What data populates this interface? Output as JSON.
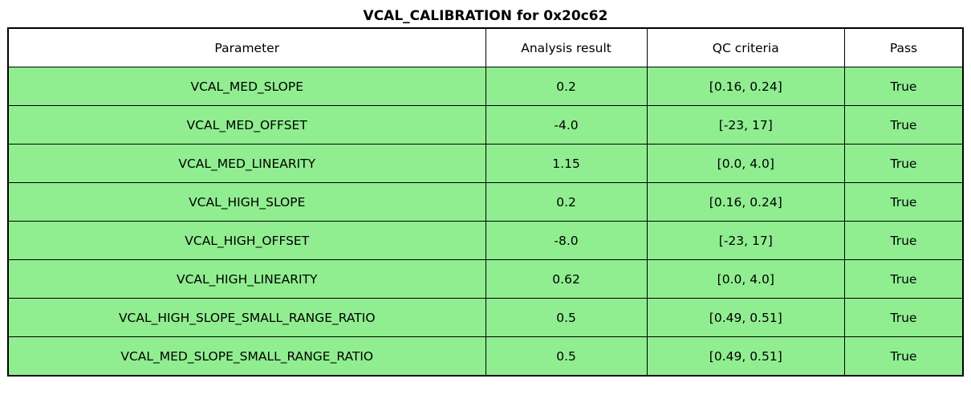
{
  "title": "VCAL_CALIBRATION for 0x20c62",
  "colors": {
    "pass_row_green": "#90EE90",
    "header_background": "#FFFFFF",
    "border": "#000000",
    "text": "#000000"
  },
  "table": {
    "headers": [
      "Parameter",
      "Analysis result",
      "QC criteria",
      "Pass"
    ],
    "rows": [
      {
        "parameter": "VCAL_MED_SLOPE",
        "analysis": "0.2",
        "qc": "[0.16, 0.24]",
        "pass": "True"
      },
      {
        "parameter": "VCAL_MED_OFFSET",
        "analysis": "-4.0",
        "qc": "[-23, 17]",
        "pass": "True"
      },
      {
        "parameter": "VCAL_MED_LINEARITY",
        "analysis": "1.15",
        "qc": "[0.0, 4.0]",
        "pass": "True"
      },
      {
        "parameter": "VCAL_HIGH_SLOPE",
        "analysis": "0.2",
        "qc": "[0.16, 0.24]",
        "pass": "True"
      },
      {
        "parameter": "VCAL_HIGH_OFFSET",
        "analysis": "-8.0",
        "qc": "[-23, 17]",
        "pass": "True"
      },
      {
        "parameter": "VCAL_HIGH_LINEARITY",
        "analysis": "0.62",
        "qc": "[0.0, 4.0]",
        "pass": "True"
      },
      {
        "parameter": "VCAL_HIGH_SLOPE_SMALL_RANGE_RATIO",
        "analysis": "0.5",
        "qc": "[0.49, 0.51]",
        "pass": "True"
      },
      {
        "parameter": "VCAL_MED_SLOPE_SMALL_RANGE_RATIO",
        "analysis": "0.5",
        "qc": "[0.49, 0.51]",
        "pass": "True"
      }
    ]
  },
  "chart_data": {
    "type": "table",
    "title": "VCAL_CALIBRATION for 0x20c62",
    "columns": [
      "Parameter",
      "Analysis result",
      "QC criteria",
      "Pass"
    ],
    "rows": [
      [
        "VCAL_MED_SLOPE",
        "0.2",
        "[0.16, 0.24]",
        "True"
      ],
      [
        "VCAL_MED_OFFSET",
        "-4.0",
        "[-23, 17]",
        "True"
      ],
      [
        "VCAL_MED_LINEARITY",
        "1.15",
        "[0.0, 4.0]",
        "True"
      ],
      [
        "VCAL_HIGH_SLOPE",
        "0.2",
        "[0.16, 0.24]",
        "True"
      ],
      [
        "VCAL_HIGH_OFFSET",
        "-8.0",
        "[-23, 17]",
        "True"
      ],
      [
        "VCAL_HIGH_LINEARITY",
        "0.62",
        "[0.0, 4.0]",
        "True"
      ],
      [
        "VCAL_HIGH_SLOPE_SMALL_RANGE_RATIO",
        "0.5",
        "[0.49, 0.51]",
        "True"
      ],
      [
        "VCAL_MED_SLOPE_SMALL_RANGE_RATIO",
        "0.5",
        "[0.49, 0.51]",
        "True"
      ]
    ],
    "layout_hints": {
      "header_background": "#FFFFFF",
      "row_background_all_pass": "#90EE90",
      "all_cells_centered": true,
      "grid": true
    }
  }
}
